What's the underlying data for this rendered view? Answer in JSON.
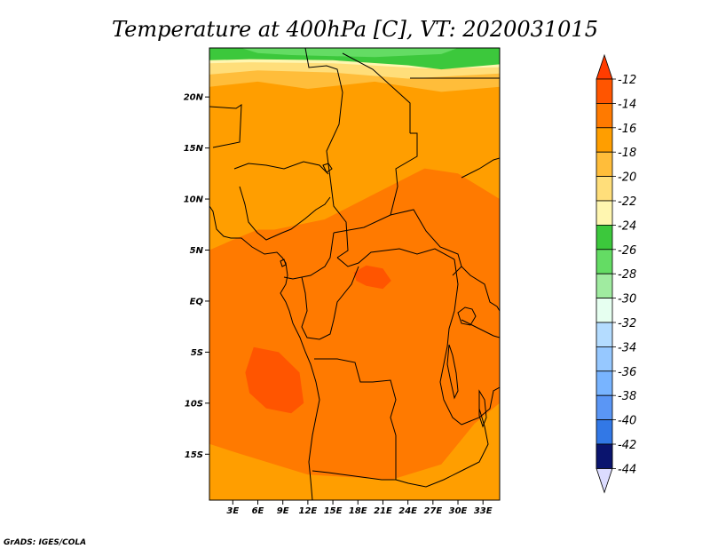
{
  "chart_data": {
    "type": "heatmap",
    "title": "Temperature at 400hPa [C], VT: 2020031015",
    "xlabel": "",
    "ylabel": "",
    "x_tick_labels": [
      "3E",
      "6E",
      "9E",
      "12E",
      "15E",
      "18E",
      "21E",
      "24E",
      "27E",
      "30E",
      "33E"
    ],
    "x_tick_values": [
      3,
      6,
      9,
      12,
      15,
      18,
      21,
      24,
      27,
      30,
      33
    ],
    "y_tick_labels": [
      "20N",
      "15N",
      "10N",
      "5N",
      "EQ",
      "5S",
      "10S",
      "15S"
    ],
    "y_tick_values": [
      20,
      15,
      10,
      5,
      0,
      -5,
      -10,
      -15
    ],
    "xlim": [
      0.2,
      35
    ],
    "ylim": [
      -19.5,
      24.8
    ],
    "colorbar": {
      "levels": [
        "-12",
        "-14",
        "-16",
        "-18",
        "-20",
        "-22",
        "-24",
        "-26",
        "-28",
        "-30",
        "-32",
        "-34",
        "-36",
        "-38",
        "-40",
        "-42",
        "-44"
      ],
      "colors": [
        "#ff5500",
        "#ff7a00",
        "#ff9e00",
        "#ffbd3a",
        "#ffde7a",
        "#fff6b0",
        "#3cc83c",
        "#64dc64",
        "#a0eba0",
        "#e6fff0",
        "#b4dcff",
        "#96c8ff",
        "#78b4ff",
        "#5a96f5",
        "#3278e6",
        "#1450c8",
        "#0a146e"
      ],
      "over_color": "#ff3c00",
      "under_color": "#dcdcff"
    },
    "field_regions": [
      {
        "value": "-16",
        "polygon": [
          [
            0.2,
            24.8
          ],
          [
            35,
            24.8
          ],
          [
            35,
            -19.5
          ],
          [
            0.2,
            -19.5
          ]
        ]
      },
      {
        "value": "-14",
        "polygon": [
          [
            8,
            7
          ],
          [
            14,
            8
          ],
          [
            20,
            10.5
          ],
          [
            26,
            13
          ],
          [
            30,
            12.5
          ],
          [
            35,
            10
          ],
          [
            35,
            -10
          ],
          [
            32,
            -12
          ],
          [
            28,
            -16
          ],
          [
            22,
            -17.5
          ],
          [
            12,
            -17
          ],
          [
            4,
            -15
          ],
          [
            0.2,
            -14
          ],
          [
            0.2,
            5
          ],
          [
            3,
            6
          ],
          [
            6,
            7
          ]
        ]
      },
      {
        "value": "-12",
        "polygon": [
          [
            5.5,
            -4.5
          ],
          [
            8.5,
            -5
          ],
          [
            11,
            -7
          ],
          [
            11.5,
            -10
          ],
          [
            10,
            -11
          ],
          [
            7,
            -10.5
          ],
          [
            5,
            -9
          ],
          [
            4.5,
            -7
          ]
        ]
      },
      {
        "value": "-12",
        "polygon": [
          [
            17.5,
            2.8
          ],
          [
            19,
            3.5
          ],
          [
            21,
            3.2
          ],
          [
            22,
            2
          ],
          [
            21,
            1.2
          ],
          [
            19,
            1.5
          ],
          [
            17.8,
            2
          ]
        ]
      },
      {
        "value": "-18",
        "polygon": [
          [
            0.2,
            24.8
          ],
          [
            35,
            24.8
          ],
          [
            35,
            21
          ],
          [
            28,
            20.5
          ],
          [
            20,
            21.5
          ],
          [
            12,
            20.8
          ],
          [
            6,
            21.5
          ],
          [
            0.2,
            21
          ]
        ]
      },
      {
        "value": "-20",
        "polygon": [
          [
            0.2,
            24.8
          ],
          [
            35,
            24.8
          ],
          [
            35,
            22.3
          ],
          [
            24,
            21.8
          ],
          [
            15,
            22.4
          ],
          [
            6,
            22.6
          ],
          [
            0.2,
            22.2
          ]
        ]
      },
      {
        "value": "-22",
        "polygon": [
          [
            0.2,
            24.8
          ],
          [
            35,
            24.8
          ],
          [
            35,
            22.9
          ],
          [
            26,
            22.8
          ],
          [
            15,
            23.3
          ],
          [
            5,
            23.4
          ],
          [
            0.2,
            23.3
          ]
        ]
      },
      {
        "value": "-24",
        "polygon": [
          [
            0.2,
            24.8
          ],
          [
            35,
            24.8
          ],
          [
            35,
            23.2
          ],
          [
            28,
            22.7
          ],
          [
            24,
            23.1
          ],
          [
            15,
            23.6
          ],
          [
            5,
            23.7
          ],
          [
            0.2,
            23.6
          ]
        ]
      },
      {
        "value": "-26",
        "polygon": [
          [
            4,
            24.8
          ],
          [
            30,
            24.8
          ],
          [
            28,
            24.2
          ],
          [
            20,
            23.9
          ],
          [
            10,
            24.1
          ],
          [
            6,
            24.3
          ]
        ]
      }
    ]
  },
  "credit": "GrADS: IGES/COLA"
}
